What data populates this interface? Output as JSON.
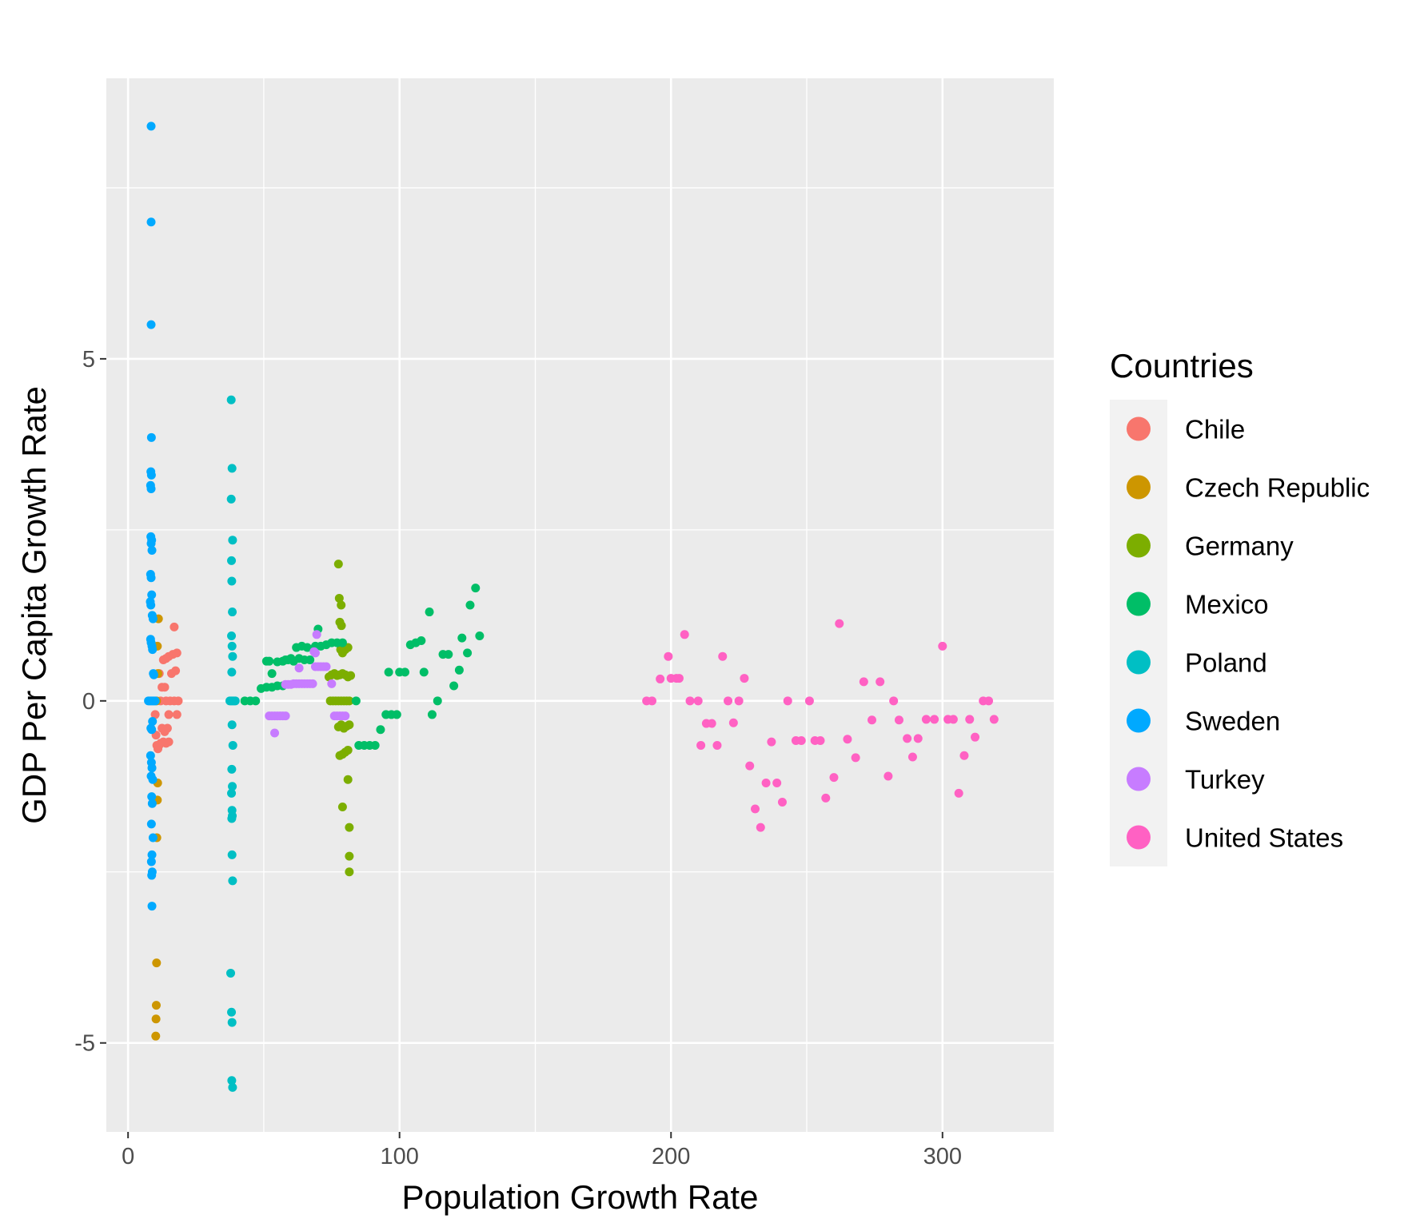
{
  "chart_data": {
    "type": "scatter",
    "title": "",
    "xlabel": "Population Growth Rate",
    "ylabel": "GDP Per Capita Growth Rate",
    "xlim": [
      -8,
      341
    ],
    "ylim": [
      -6.3,
      9.1
    ],
    "x_ticks": [
      0,
      100,
      200,
      300
    ],
    "y_ticks": [
      -5,
      0,
      5
    ],
    "x_tick_labels": [
      "0",
      "100",
      "200",
      "300"
    ],
    "y_tick_labels": [
      "-5",
      "0",
      "5"
    ],
    "grid": true,
    "legend": {
      "title": "Countries",
      "position": "right"
    },
    "series": [
      {
        "name": "Chile",
        "color": "#F8766D",
        "points": [
          [
            10,
            -0.2
          ],
          [
            10.3,
            -0.5
          ],
          [
            10.6,
            -0.65
          ],
          [
            11,
            -0.7
          ],
          [
            11.4,
            -0.65
          ],
          [
            12,
            -0.62
          ],
          [
            13,
            -0.6
          ],
          [
            13.5,
            -0.45
          ],
          [
            14,
            -0.62
          ],
          [
            14.5,
            -0.4
          ],
          [
            15,
            -0.6
          ],
          [
            12.5,
            0.2
          ],
          [
            13.5,
            0.2
          ],
          [
            13,
            0.6
          ],
          [
            14,
            0.62
          ],
          [
            15,
            0.65
          ],
          [
            16,
            0.4
          ],
          [
            16.5,
            0.68
          ],
          [
            17,
            1.08
          ],
          [
            17.5,
            0.44
          ],
          [
            18,
            0.7
          ],
          [
            18,
            -0.2
          ],
          [
            15,
            -0.2
          ],
          [
            14,
            0
          ],
          [
            15.5,
            0
          ],
          [
            17,
            0
          ],
          [
            18.5,
            0
          ],
          [
            12,
            0
          ],
          [
            11.5,
            0.4
          ],
          [
            12.5,
            -0.4
          ]
        ]
      },
      {
        "name": "Czech Republic",
        "color": "#CD9600",
        "points": [
          [
            10.2,
            -4.9
          ],
          [
            10.3,
            -4.65
          ],
          [
            10.4,
            -4.45
          ],
          [
            10.5,
            -3.83
          ],
          [
            10.6,
            -2.0
          ],
          [
            10.8,
            -1.45
          ],
          [
            10.9,
            -1.2
          ],
          [
            11.0,
            0.4
          ],
          [
            10.8,
            0.8
          ],
          [
            11.2,
            1.2
          ],
          [
            10.5,
            0
          ]
        ]
      },
      {
        "name": "Germany",
        "color": "#7CAE00",
        "points": [
          [
            74,
            0.35
          ],
          [
            75,
            0.38
          ],
          [
            76,
            0.4
          ],
          [
            77,
            0.37
          ],
          [
            78,
            0.38
          ],
          [
            79,
            0.4
          ],
          [
            80,
            0.38
          ],
          [
            81,
            0.35
          ],
          [
            82,
            0.37
          ],
          [
            74.5,
            0
          ],
          [
            75.5,
            0
          ],
          [
            76.5,
            0
          ],
          [
            77.5,
            0
          ],
          [
            78.5,
            0
          ],
          [
            79.5,
            0
          ],
          [
            80.5,
            0
          ],
          [
            81.5,
            0
          ],
          [
            77.5,
            2.0
          ],
          [
            77.8,
            1.5
          ],
          [
            78.5,
            1.4
          ],
          [
            78,
            1.15
          ],
          [
            78.6,
            1.1
          ],
          [
            78.3,
            0.75
          ],
          [
            79,
            0.7
          ],
          [
            80,
            0.75
          ],
          [
            81,
            0.78
          ],
          [
            77.5,
            -0.38
          ],
          [
            78.5,
            -0.35
          ],
          [
            79.5,
            -0.4
          ],
          [
            80.5,
            -0.37
          ],
          [
            81.5,
            -0.35
          ],
          [
            78,
            -0.8
          ],
          [
            79,
            -0.78
          ],
          [
            80,
            -0.75
          ],
          [
            81,
            -0.72
          ],
          [
            79,
            -1.55
          ],
          [
            81,
            -1.15
          ],
          [
            81.5,
            -1.85
          ],
          [
            81.5,
            -2.27
          ],
          [
            81.5,
            -2.5
          ]
        ]
      },
      {
        "name": "Mexico",
        "color": "#00BE67",
        "points": [
          [
            43,
            0
          ],
          [
            45,
            0
          ],
          [
            47,
            0
          ],
          [
            49,
            0.18
          ],
          [
            51,
            0.2
          ],
          [
            53,
            0.2
          ],
          [
            55,
            0.22
          ],
          [
            57,
            0.22
          ],
          [
            59,
            0.6
          ],
          [
            61,
            0.58
          ],
          [
            63,
            0.62
          ],
          [
            65,
            0.6
          ],
          [
            67,
            0.6
          ],
          [
            69,
            0.8
          ],
          [
            71,
            0.8
          ],
          [
            73,
            0.82
          ],
          [
            75,
            0.85
          ],
          [
            77,
            0.85
          ],
          [
            79,
            0.85
          ],
          [
            51,
            0.58
          ],
          [
            52,
            0.58
          ],
          [
            53,
            0.4
          ],
          [
            55,
            0.57
          ],
          [
            57,
            0.58
          ],
          [
            58,
            0.6
          ],
          [
            60,
            0.62
          ],
          [
            62,
            0.78
          ],
          [
            64,
            0.8
          ],
          [
            66,
            0.78
          ],
          [
            70,
            1.05
          ],
          [
            84,
            0
          ],
          [
            85,
            -0.65
          ],
          [
            87,
            -0.65
          ],
          [
            89,
            -0.65
          ],
          [
            91,
            -0.65
          ],
          [
            93,
            -0.42
          ],
          [
            95,
            -0.2
          ],
          [
            97,
            -0.2
          ],
          [
            99,
            -0.2
          ],
          [
            96,
            0.42
          ],
          [
            100,
            0.42
          ],
          [
            102,
            0.42
          ],
          [
            104,
            0.82
          ],
          [
            106,
            0.85
          ],
          [
            108,
            0.88
          ],
          [
            109,
            0.42
          ],
          [
            111,
            1.3
          ],
          [
            112,
            -0.2
          ],
          [
            114,
            0
          ],
          [
            116,
            0.68
          ],
          [
            118,
            0.68
          ],
          [
            120,
            0.22
          ],
          [
            122,
            0.45
          ],
          [
            123,
            0.92
          ],
          [
            125,
            0.7
          ],
          [
            126,
            1.4
          ],
          [
            128,
            1.65
          ],
          [
            129.5,
            0.95
          ]
        ]
      },
      {
        "name": "Poland",
        "color": "#00BFC4",
        "points": [
          [
            38,
            4.4
          ],
          [
            38.3,
            3.4
          ],
          [
            38,
            2.95
          ],
          [
            38.5,
            2.35
          ],
          [
            38.1,
            2.05
          ],
          [
            38.2,
            1.75
          ],
          [
            38.4,
            1.3
          ],
          [
            38.1,
            0.95
          ],
          [
            38.3,
            0.8
          ],
          [
            38.5,
            0.65
          ],
          [
            38.2,
            0.42
          ],
          [
            37.5,
            0
          ],
          [
            38,
            0
          ],
          [
            38.5,
            0
          ],
          [
            39,
            0
          ],
          [
            39.5,
            0
          ],
          [
            38.3,
            -0.35
          ],
          [
            38.6,
            -0.65
          ],
          [
            38.2,
            -1.0
          ],
          [
            38.4,
            -1.25
          ],
          [
            38.1,
            -1.35
          ],
          [
            38.3,
            -1.6
          ],
          [
            38.4,
            -1.68
          ],
          [
            38.2,
            -1.72
          ],
          [
            38.3,
            -2.25
          ],
          [
            38.5,
            -2.63
          ],
          [
            37.8,
            -3.98
          ],
          [
            38.1,
            -4.55
          ],
          [
            38.3,
            -4.7
          ],
          [
            38.2,
            -5.55
          ],
          [
            38.5,
            -5.65
          ]
        ]
      },
      {
        "name": "Sweden",
        "color": "#00A9FF",
        "points": [
          [
            8.5,
            8.4
          ],
          [
            8.5,
            7.0
          ],
          [
            8.5,
            5.5
          ],
          [
            8.6,
            3.85
          ],
          [
            8.4,
            3.35
          ],
          [
            8.6,
            3.3
          ],
          [
            8.3,
            3.15
          ],
          [
            8.5,
            3.1
          ],
          [
            8.4,
            2.4
          ],
          [
            8.7,
            2.35
          ],
          [
            8.5,
            2.3
          ],
          [
            8.8,
            2.2
          ],
          [
            8.3,
            1.85
          ],
          [
            8.5,
            1.8
          ],
          [
            8.7,
            1.55
          ],
          [
            8.2,
            1.45
          ],
          [
            8.4,
            1.4
          ],
          [
            8.9,
            1.25
          ],
          [
            9.2,
            1.2
          ],
          [
            8.3,
            0.9
          ],
          [
            8.5,
            0.85
          ],
          [
            8.8,
            0.8
          ],
          [
            9.0,
            0.75
          ],
          [
            9.3,
            0.4
          ],
          [
            9.5,
            0.38
          ],
          [
            7.5,
            0
          ],
          [
            8,
            0
          ],
          [
            8.5,
            0
          ],
          [
            9,
            0
          ],
          [
            9.5,
            0
          ],
          [
            10,
            0
          ],
          [
            8.4,
            -0.4
          ],
          [
            8.7,
            -0.42
          ],
          [
            9.0,
            -0.3
          ],
          [
            8.3,
            -0.8
          ],
          [
            8.6,
            -0.9
          ],
          [
            8.8,
            -0.98
          ],
          [
            8.5,
            -1.1
          ],
          [
            9.1,
            -1.15
          ],
          [
            8.7,
            -1.4
          ],
          [
            8.9,
            -1.5
          ],
          [
            8.6,
            -1.8
          ],
          [
            9.2,
            -2.0
          ],
          [
            8.8,
            -2.25
          ],
          [
            8.6,
            -2.35
          ],
          [
            8.9,
            -2.5
          ],
          [
            8.7,
            -2.55
          ],
          [
            8.8,
            -3.0
          ]
        ]
      },
      {
        "name": "Turkey",
        "color": "#C77CFF",
        "points": [
          [
            52,
            -0.22
          ],
          [
            53,
            -0.22
          ],
          [
            54,
            -0.22
          ],
          [
            55,
            -0.22
          ],
          [
            56,
            -0.22
          ],
          [
            57,
            -0.22
          ],
          [
            58,
            -0.22
          ],
          [
            54,
            -0.47
          ],
          [
            58,
            0.24
          ],
          [
            59,
            0.24
          ],
          [
            60,
            0.24
          ],
          [
            61,
            0.25
          ],
          [
            62,
            0.25
          ],
          [
            63,
            0.25
          ],
          [
            64,
            0.25
          ],
          [
            65,
            0.25
          ],
          [
            66,
            0.25
          ],
          [
            67,
            0.25
          ],
          [
            68,
            0.25
          ],
          [
            63,
            0.48
          ],
          [
            69,
            0.5
          ],
          [
            70,
            0.5
          ],
          [
            71,
            0.5
          ],
          [
            72,
            0.5
          ],
          [
            73,
            0.5
          ],
          [
            68.5,
            0.72
          ],
          [
            69,
            0.7
          ],
          [
            69.5,
            0.97
          ],
          [
            75,
            0.25
          ],
          [
            76,
            -0.22
          ],
          [
            77,
            -0.22
          ],
          [
            78,
            -0.22
          ],
          [
            79,
            -0.22
          ],
          [
            80,
            -0.22
          ]
        ]
      },
      {
        "name": "United States",
        "color": "#FF61C3",
        "points": [
          [
            191,
            0
          ],
          [
            193,
            0
          ],
          [
            196,
            0.32
          ],
          [
            199,
            0.65
          ],
          [
            200,
            0.33
          ],
          [
            202,
            0.33
          ],
          [
            203,
            0.33
          ],
          [
            205,
            0.97
          ],
          [
            207,
            0
          ],
          [
            210,
            0
          ],
          [
            211,
            -0.65
          ],
          [
            213,
            -0.33
          ],
          [
            215,
            -0.33
          ],
          [
            217,
            -0.65
          ],
          [
            219,
            0.65
          ],
          [
            221,
            0
          ],
          [
            223,
            -0.32
          ],
          [
            225,
            0
          ],
          [
            227,
            0.33
          ],
          [
            229,
            -0.95
          ],
          [
            231,
            -1.58
          ],
          [
            233,
            -1.85
          ],
          [
            235,
            -1.2
          ],
          [
            237,
            -0.6
          ],
          [
            239,
            -1.2
          ],
          [
            241,
            -1.48
          ],
          [
            243,
            0
          ],
          [
            246,
            -0.58
          ],
          [
            248,
            -0.58
          ],
          [
            251,
            0
          ],
          [
            253,
            -0.58
          ],
          [
            255,
            -0.58
          ],
          [
            257,
            -1.42
          ],
          [
            260,
            -1.12
          ],
          [
            262,
            1.13
          ],
          [
            265,
            -0.56
          ],
          [
            268,
            -0.83
          ],
          [
            271,
            0.28
          ],
          [
            274,
            -0.28
          ],
          [
            277,
            0.28
          ],
          [
            280,
            -1.1
          ],
          [
            282,
            0
          ],
          [
            284,
            -0.28
          ],
          [
            287,
            -0.55
          ],
          [
            289,
            -0.82
          ],
          [
            291,
            -0.55
          ],
          [
            294,
            -0.27
          ],
          [
            297,
            -0.27
          ],
          [
            300,
            0.8
          ],
          [
            302,
            -0.27
          ],
          [
            304,
            -0.27
          ],
          [
            306,
            -1.35
          ],
          [
            308,
            -0.8
          ],
          [
            310,
            -0.27
          ],
          [
            312,
            -0.53
          ],
          [
            315,
            0
          ],
          [
            317,
            0
          ],
          [
            319,
            -0.27
          ]
        ]
      }
    ]
  }
}
